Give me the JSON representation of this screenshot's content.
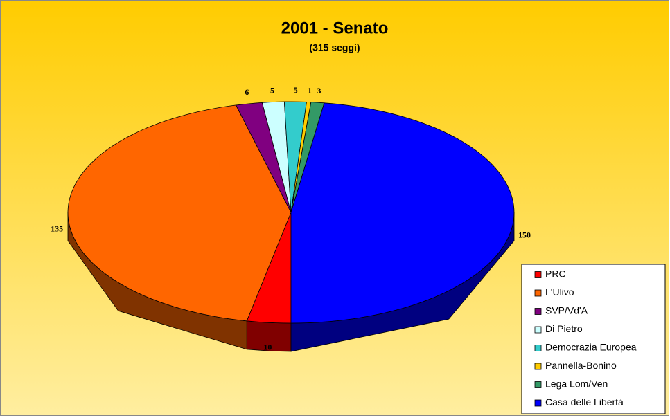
{
  "chart_data": {
    "type": "pie3d",
    "title": "2001 - Senato",
    "subtitle": "(315 seggi)",
    "categories": [
      "PRC",
      "L'Ulivo",
      "SVP/Vd'A",
      "Di Pietro",
      "Democrazia Europea",
      "Pannella-Bonino",
      "Lega Lom/Ven",
      "Casa delle Libertà"
    ],
    "values": [
      10,
      135,
      6,
      5,
      5,
      1,
      3,
      150
    ],
    "colors": [
      "#ff0000",
      "#ff6600",
      "#800080",
      "#ccffff",
      "#33cccc",
      "#ffcc00",
      "#339966",
      "#0000ff"
    ],
    "legend": "bottom-right"
  }
}
